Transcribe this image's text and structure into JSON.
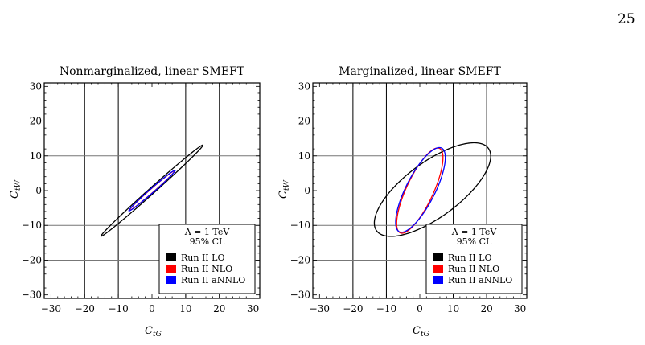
{
  "page": {
    "number": "25"
  },
  "chart_data": [
    {
      "type": "scatter",
      "title": "Nonmarginalized, linear SMEFT",
      "xlabel": "C_tG",
      "ylabel": "C_tW",
      "xlim": [
        -32,
        32
      ],
      "ylim": [
        -31,
        31
      ],
      "xticks": [
        -30,
        -20,
        -10,
        0,
        10,
        20,
        30
      ],
      "yticks": [
        -30,
        -20,
        -10,
        0,
        10,
        20,
        30
      ],
      "xtick_labels": [
        "−30",
        "−20",
        "−10",
        "0",
        "10",
        "20",
        "30"
      ],
      "ytick_labels": [
        "−30",
        "−20",
        "−10",
        "0",
        "10",
        "20",
        "30"
      ],
      "vertical_gridlines": [
        -20,
        -10,
        10,
        20
      ],
      "horizontal_gridlines": [
        -20,
        -10,
        10,
        20
      ],
      "legend": {
        "placement": "bottom-right",
        "header": [
          "Λ = 1 TeV",
          "95% CL"
        ],
        "entries": [
          "Run II LO",
          "Run II NLO",
          "Run II aNNLO"
        ]
      },
      "series": [
        {
          "name": "Run II LO",
          "color": "#000000",
          "ellipse": {
            "cx": 0,
            "cy": 0,
            "semi_major": 20.0,
            "semi_minor": 0.85,
            "angle_deg": 40.9
          }
        },
        {
          "name": "Run II NLO",
          "color": "#ff0000",
          "ellipse": {
            "cx": 0,
            "cy": 0,
            "semi_major": 8.8,
            "semi_minor": 0.55,
            "angle_deg": 40.3
          }
        },
        {
          "name": "Run II aNNLO",
          "color": "#0000ff",
          "ellipse": {
            "cx": 0,
            "cy": 0,
            "semi_major": 9.0,
            "semi_minor": 0.6,
            "angle_deg": 40.3
          }
        }
      ]
    },
    {
      "type": "scatter",
      "title": "Marginalized, linear SMEFT",
      "xlabel": "C_tG",
      "ylabel": "C_tW",
      "xlim": [
        -32,
        32
      ],
      "ylim": [
        -31,
        31
      ],
      "xticks": [
        -30,
        -20,
        -10,
        0,
        10,
        20,
        30
      ],
      "yticks": [
        -30,
        -20,
        -10,
        0,
        10,
        20,
        30
      ],
      "xtick_labels": [
        "−30",
        "−20",
        "−10",
        "0",
        "10",
        "20",
        "30"
      ],
      "ytick_labels": [
        "−30",
        "−20",
        "−10",
        "0",
        "10",
        "20",
        "30"
      ],
      "vertical_gridlines": [
        -20,
        -10,
        10,
        20
      ],
      "horizontal_gridlines": [
        -20,
        -10,
        10,
        20
      ],
      "legend": {
        "placement": "bottom-right",
        "header": [
          "Λ = 1 TeV",
          "95% CL"
        ],
        "entries": [
          "Run II LO",
          "Run II NLO",
          "Run II aNNLO"
        ]
      },
      "series": [
        {
          "name": "Run II LO",
          "color": "#000000",
          "ellipse": {
            "cx": 3.8,
            "cy": 0.3,
            "semi_major": 20.5,
            "semi_minor": 8.0,
            "angle_deg": 35
          }
        },
        {
          "name": "Run II NLO",
          "color": "#ff0000",
          "ellipse": {
            "cx": 0,
            "cy": 0,
            "semi_major": 13.5,
            "semi_minor": 4.0,
            "angle_deg": 64
          }
        },
        {
          "name": "Run II aNNLO",
          "color": "#0000ff",
          "ellipse": {
            "cx": 0.2,
            "cy": 0.2,
            "semi_major": 13.6,
            "semi_minor": 4.3,
            "angle_deg": 62
          }
        }
      ]
    }
  ]
}
